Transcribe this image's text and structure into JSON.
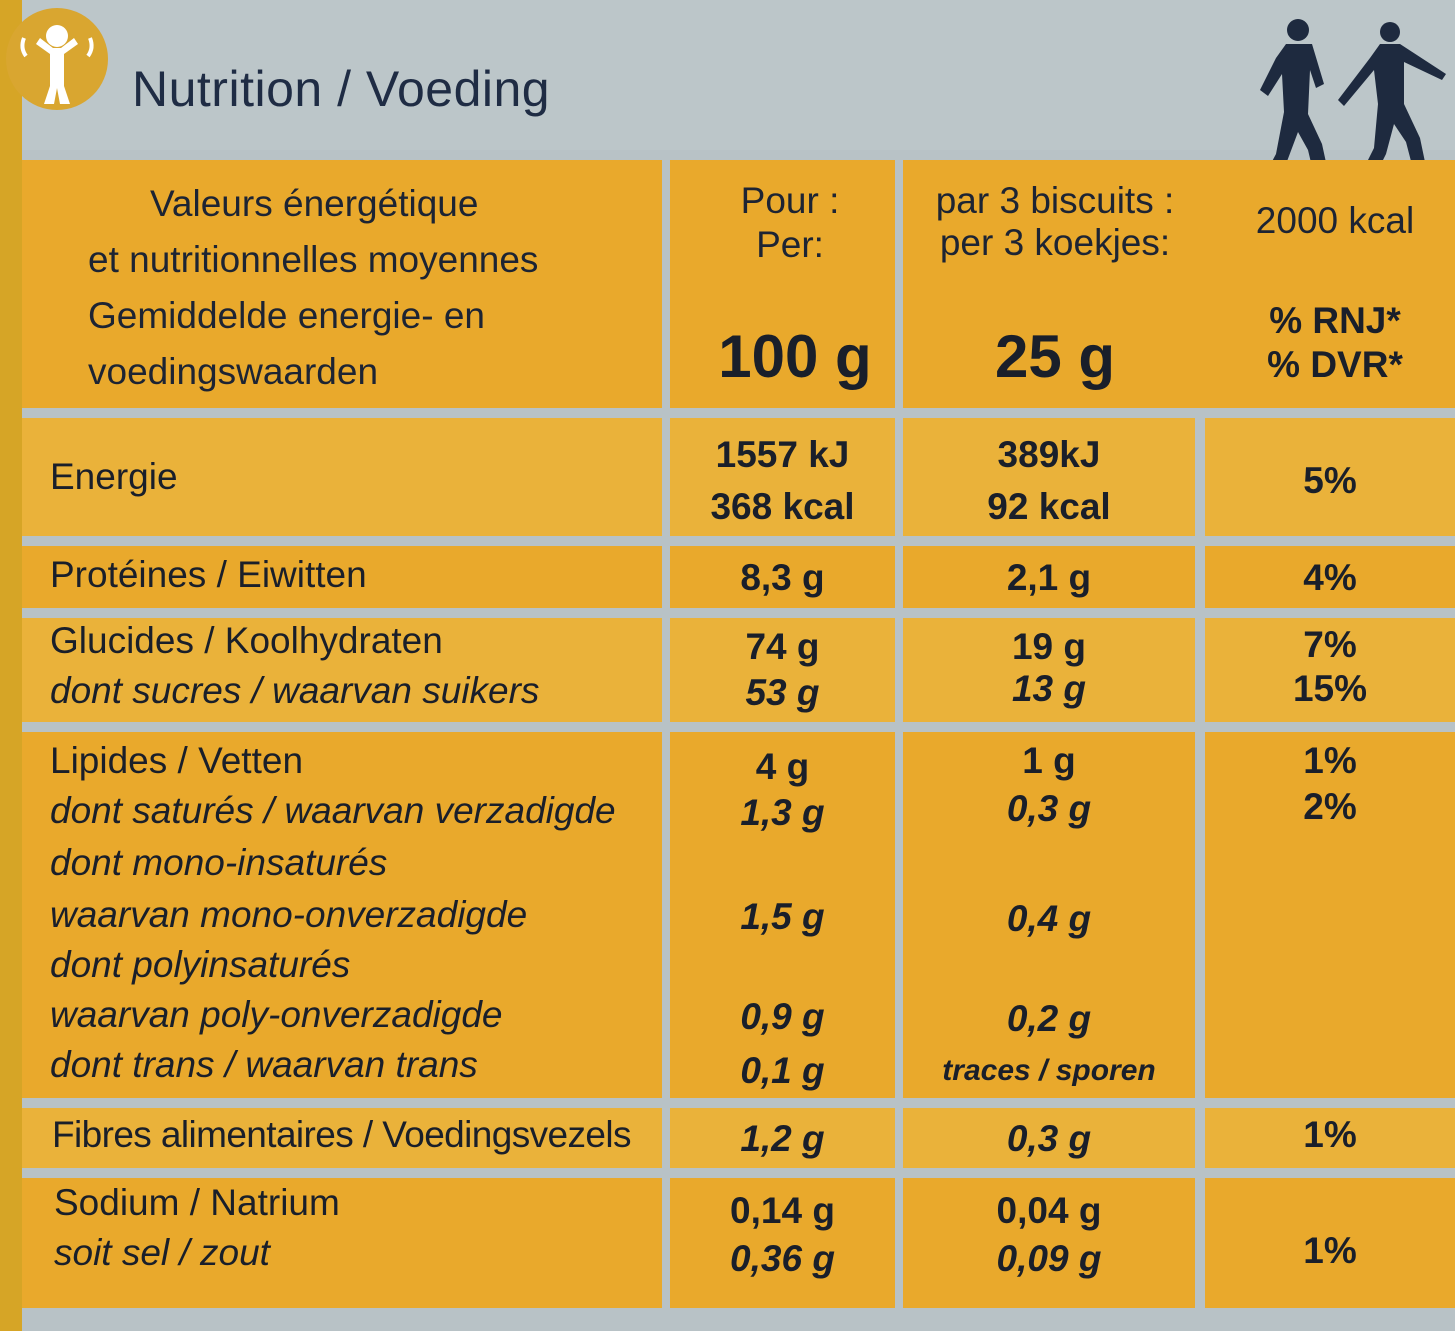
{
  "title": "Nutrition / Voeding",
  "colors": {
    "panel": "#e9a92c",
    "background": "#b8c2c6",
    "text": "#1a1f2a"
  },
  "icons": {
    "logo": "child-arms-up-icon",
    "walkers": "walking-people-icon"
  },
  "header": {
    "desc_lines": [
      "Valeurs énergétique",
      "et nutritionnelles moyennes",
      "Gemiddelde energie- en",
      "voedingswaarden"
    ],
    "per_lines": [
      "Pour :",
      "Per:"
    ],
    "per_amount": "100 g",
    "portion_lines": [
      "par 3 biscuits :",
      "per 3 koekjes:"
    ],
    "portion_amount": "25 g",
    "ref_kcal": "2000 kcal",
    "ref_lines": [
      "% RNJ*",
      "% DVR*"
    ]
  },
  "rows": {
    "energie": {
      "label": "Energie",
      "per100": [
        "1557 kJ",
        "368 kcal"
      ],
      "portion": [
        "389kJ",
        "92 kcal"
      ],
      "ri": "5%"
    },
    "proteines": {
      "label": "Protéines / Eiwitten",
      "per100": "8,3 g",
      "portion": "2,1 g",
      "ri": "4%"
    },
    "glucides": {
      "label": "Glucides / Koolhydraten",
      "per100": "74 g",
      "portion": "19 g",
      "ri": "7%",
      "sub_label": "dont sucres / waarvan suikers",
      "sub_per100": "53 g",
      "sub_portion": "13 g",
      "sub_ri": "15%"
    },
    "lipides": {
      "label": "Lipides / Vetten",
      "per100": "4 g",
      "portion": "1 g",
      "ri": "1%",
      "sat_label": "dont saturés / waarvan verzadigde",
      "sat_per100": "1,3 g",
      "sat_portion": "0,3 g",
      "sat_ri": "2%",
      "mono_label1": "dont mono-insaturés",
      "mono_label2": "waarvan mono-onverzadigde",
      "mono_per100": "1,5 g",
      "mono_portion": "0,4 g",
      "poly_label1": "dont polyinsaturés",
      "poly_label2": "waarvan poly-onverzadigde",
      "poly_per100": "0,9 g",
      "poly_portion": "0,2 g",
      "trans_label": "dont trans / waarvan trans",
      "trans_per100": "0,1 g",
      "trans_portion": "traces / sporen"
    },
    "fibres": {
      "label": "Fibres alimentaires / Voedingsvezels",
      "per100": "1,2 g",
      "portion": "0,3 g",
      "ri": "1%"
    },
    "sodium": {
      "label": "Sodium / Natrium",
      "per100": "0,14 g",
      "portion": "0,04 g",
      "sel_label": "soit sel / zout",
      "sel_per100": "0,36 g",
      "sel_portion": "0,09 g",
      "ri": "1%"
    }
  }
}
